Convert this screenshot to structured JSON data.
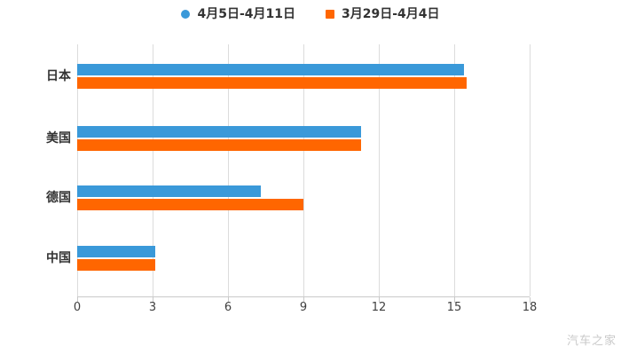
{
  "watermark": "汽车之家",
  "chart_data": {
    "type": "bar",
    "orientation": "horizontal",
    "title": "",
    "xlabel": "",
    "ylabel": "",
    "categories": [
      "日本",
      "美国",
      "德国",
      "中国"
    ],
    "series": [
      {
        "name": "4月5日-4月11日",
        "color": "#3a99d9",
        "marker": "circle",
        "values": [
          15.4,
          11.3,
          7.3,
          3.1
        ]
      },
      {
        "name": "3月29日-4月4日",
        "color": "#ff6600",
        "marker": "square",
        "values": [
          15.5,
          11.3,
          9.0,
          3.1
        ]
      }
    ],
    "xlim": [
      0,
      18
    ],
    "xticks": [
      0,
      3,
      6,
      9,
      12,
      15,
      18
    ],
    "grid": "vertical-lines",
    "legend_position": "top-center",
    "colors": {
      "grid_line": "#dcdcdc",
      "axis_line": "#c9c9c9",
      "tick_label": "#404040",
      "category_label": "#333333",
      "watermark": "#c9c9c9",
      "background": "#ffffff"
    }
  }
}
